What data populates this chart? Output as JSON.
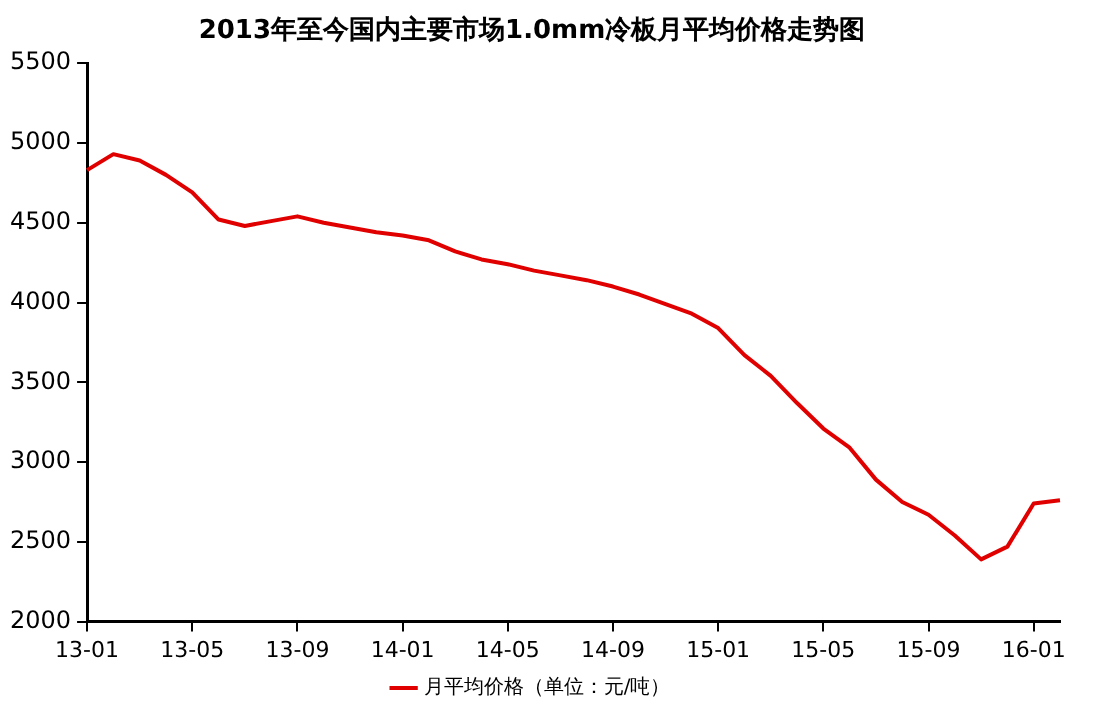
{
  "chart_data": {
    "type": "line",
    "title": "2013年至今国内主要市场1.0mm冷板月平均价格走势图",
    "categories": [
      "13-01",
      null,
      null,
      null,
      "13-05",
      null,
      null,
      null,
      "13-09",
      null,
      null,
      null,
      "14-01",
      null,
      null,
      null,
      "14-05",
      null,
      null,
      null,
      "14-09",
      null,
      null,
      null,
      "15-01",
      null,
      null,
      null,
      "15-05",
      null,
      null,
      null,
      "15-09",
      null,
      null,
      null,
      "16-01",
      null
    ],
    "series": [
      {
        "name": "月平均价格（单位：元/吨）",
        "color": "#e00000",
        "values": [
          4830,
          4930,
          4890,
          4800,
          4690,
          4520,
          4480,
          4510,
          4540,
          4500,
          4470,
          4440,
          4420,
          4390,
          4320,
          4270,
          4240,
          4200,
          4170,
          4140,
          4100,
          4050,
          3990,
          3930,
          3840,
          3670,
          3540,
          3370,
          3210,
          3090,
          2890,
          2750,
          2670,
          2540,
          2390,
          2470,
          2740,
          2760
        ]
      }
    ],
    "ylim": [
      2000,
      5500
    ],
    "yticks": [
      2000,
      2500,
      3000,
      3500,
      4000,
      4500,
      5000,
      5500
    ],
    "grid": false,
    "legend": "bottom",
    "marker": "none",
    "line_style": "solid"
  }
}
